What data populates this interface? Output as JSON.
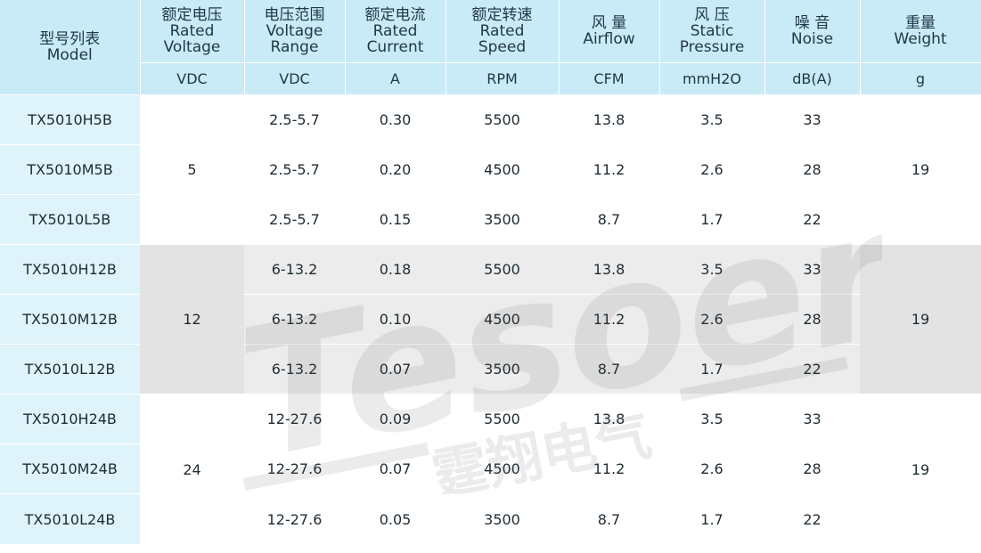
{
  "header": {
    "model": [
      "型号列表",
      "Model"
    ],
    "voltage": [
      "额定电压",
      "Rated",
      "Voltage"
    ],
    "range": [
      "电压范围",
      "Voltage",
      "Range"
    ],
    "current": [
      "额定电流",
      "Rated",
      "Current"
    ],
    "speed": [
      "额定转速",
      "Rated",
      "Speed"
    ],
    "airflow": [
      "风 量",
      "Airflow"
    ],
    "pressure": [
      "风 压",
      "Static",
      "Pressure"
    ],
    "noise": [
      "噪 音",
      "Noise"
    ],
    "weight": [
      "重量",
      "Weight"
    ]
  },
  "units": {
    "voltage": "VDC",
    "range": "VDC",
    "current": "A",
    "speed": "RPM",
    "airflow": "CFM",
    "pressure": "mmH2O",
    "noise": "dB(A)",
    "weight": "g"
  },
  "groups": [
    {
      "voltage": "5",
      "weight": "19",
      "rows": [
        {
          "model": "TX5010H5B",
          "range": "2.5-5.7",
          "current": "0.30",
          "speed": "5500",
          "airflow": "13.8",
          "pressure": "3.5",
          "noise": "33"
        },
        {
          "model": "TX5010M5B",
          "range": "2.5-5.7",
          "current": "0.20",
          "speed": "4500",
          "airflow": "11.2",
          "pressure": "2.6",
          "noise": "28"
        },
        {
          "model": "TX5010L5B",
          "range": "2.5-5.7",
          "current": "0.15",
          "speed": "3500",
          "airflow": "8.7",
          "pressure": "1.7",
          "noise": "22"
        }
      ]
    },
    {
      "voltage": "12",
      "weight": "19",
      "rows": [
        {
          "model": "TX5010H12B",
          "range": "6-13.2",
          "current": "0.18",
          "speed": "5500",
          "airflow": "13.8",
          "pressure": "3.5",
          "noise": "33"
        },
        {
          "model": "TX5010M12B",
          "range": "6-13.2",
          "current": "0.10",
          "speed": "4500",
          "airflow": "11.2",
          "pressure": "2.6",
          "noise": "28"
        },
        {
          "model": "TX5010L12B",
          "range": "6-13.2",
          "current": "0.07",
          "speed": "3500",
          "airflow": "8.7",
          "pressure": "1.7",
          "noise": "22"
        }
      ]
    },
    {
      "voltage": "24",
      "weight": "19",
      "rows": [
        {
          "model": "TX5010H24B",
          "range": "12-27.6",
          "current": "0.09",
          "speed": "5500",
          "airflow": "13.8",
          "pressure": "3.5",
          "noise": "33"
        },
        {
          "model": "TX5010M24B",
          "range": "12-27.6",
          "current": "0.07",
          "speed": "4500",
          "airflow": "11.2",
          "pressure": "2.6",
          "noise": "28"
        },
        {
          "model": "TX5010L24B",
          "range": "12-27.6",
          "current": "0.05",
          "speed": "3500",
          "airflow": "8.7",
          "pressure": "1.7",
          "noise": "22"
        }
      ]
    }
  ],
  "watermark": {
    "latin": "Tesoer",
    "cjk": "霆翔电气"
  }
}
